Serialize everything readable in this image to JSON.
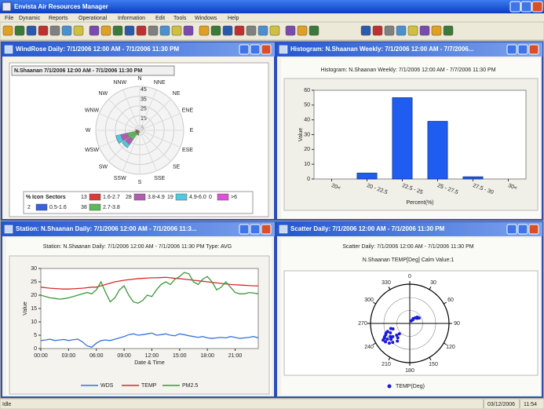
{
  "app": {
    "title": "Envista Air Resources Manager",
    "menu": [
      "File",
      "Dynamic",
      "Reports",
      "Operational",
      "Information",
      "Edit",
      "Tools",
      "Windows",
      "Help"
    ],
    "status": {
      "text": "Idle",
      "date": "03/12/2006",
      "time": "11:54"
    }
  },
  "windows": [
    {
      "title": "WindRose Daily: 7/1/2006 12:00 AM - 7/1/2006 11:30 PM"
    },
    {
      "title": "Histogram: N.Shaanan  Weekly: 7/1/2006 12:00 AM - 7/7/2006..."
    },
    {
      "title": "Station: N.Shaanan  Daily: 7/1/2006 12:00 AM - 7/1/2006 11:3..."
    },
    {
      "title": "Scatter Daily: 7/1/2006 12:00 AM - 7/1/2006 11:30 PM"
    }
  ],
  "chart_data": [
    {
      "type": "windrose",
      "title": "N.Shaanan 7/1/2006 12:00 AM - 7/1/2006 11:30 PM",
      "directions": [
        "N",
        "NNE",
        "NE",
        "ENE",
        "E",
        "ESE",
        "SE",
        "SSE",
        "S",
        "SSW",
        "SW",
        "WSW",
        "W",
        "WNW",
        "NW",
        "NNW"
      ],
      "rlim": [
        0,
        45
      ],
      "rticks": [
        5,
        15,
        25,
        35,
        45
      ],
      "legend_header": [
        "%",
        "Icon",
        "Sectors"
      ],
      "series": [
        {
          "name": "0.5-1.6",
          "color": "#3a62d8",
          "percent": 2,
          "values": [
            0,
            0,
            0,
            0,
            0,
            0,
            0,
            0,
            0,
            0,
            1,
            1,
            0,
            0,
            0,
            0
          ]
        },
        {
          "name": "1.6-2.7",
          "color": "#d83a3a",
          "percent": 13,
          "values": [
            0,
            0,
            0,
            0,
            0,
            0,
            0,
            0,
            0,
            2,
            3,
            3,
            1,
            0,
            0,
            0
          ]
        },
        {
          "name": "2.7-3.8",
          "color": "#5bb85b",
          "percent": 38,
          "values": [
            0,
            0,
            0,
            0,
            0,
            0,
            0,
            0,
            0,
            3,
            8,
            9,
            2,
            0,
            0,
            0
          ]
        },
        {
          "name": "3.8-4.9",
          "color": "#b05cb0",
          "percent": 28,
          "values": [
            0,
            0,
            0,
            0,
            0,
            0,
            0,
            0,
            0,
            0,
            6,
            7,
            1,
            0,
            0,
            0
          ]
        },
        {
          "name": "4.9-6.0",
          "color": "#4fc8e0",
          "percent": 19,
          "values": [
            0,
            0,
            0,
            0,
            0,
            0,
            0,
            0,
            0,
            0,
            4,
            5,
            0,
            0,
            0,
            0
          ]
        },
        {
          "name": ">6",
          "color": "#e04fd8",
          "percent": 0,
          "values": [
            0,
            0,
            0,
            0,
            0,
            0,
            0,
            0,
            0,
            0,
            0,
            0,
            0,
            0,
            0,
            0
          ]
        }
      ]
    },
    {
      "type": "bar",
      "title": "Histogram: N.Shaanan  Weekly: 7/1/2006 12:00 AM - 7/7/2006 11:30 PM",
      "categories": [
        "20<",
        "20 - 22.5",
        "22.5 - 25",
        "25 - 27.5",
        "27.5 - 30",
        "30<"
      ],
      "values": [
        0,
        4,
        55,
        39,
        1.5,
        0
      ],
      "color": "#1f5cf0",
      "ylim": [
        0,
        60
      ],
      "yticks": [
        0,
        10,
        20,
        30,
        40,
        50,
        60
      ],
      "x_label": "Percent(%)",
      "y_label": "Value"
    },
    {
      "type": "line",
      "title": "Station: N.Shaanan  Daily: 7/1/2006 12:00 AM - 7/1/2006 11:30 PM  Type: AVG",
      "x": [
        0,
        0.5,
        1,
        1.5,
        2,
        2.5,
        3,
        3.5,
        4,
        4.5,
        5,
        5.5,
        6,
        6.5,
        7,
        7.5,
        8,
        8.5,
        9,
        9.5,
        10,
        10.5,
        11,
        11.5,
        12,
        12.5,
        13,
        13.5,
        14,
        14.5,
        15,
        15.5,
        16,
        16.5,
        17,
        17.5,
        18,
        18.5,
        19,
        19.5,
        20,
        20.5,
        21,
        21.5,
        22,
        22.5,
        23,
        23.5
      ],
      "xlim": [
        0,
        23.5
      ],
      "xticks": [
        {
          "value": 0,
          "label": "00:00"
        },
        {
          "value": 3,
          "label": "03:00"
        },
        {
          "value": 6,
          "label": "06:00"
        },
        {
          "value": 9,
          "label": "09:00"
        },
        {
          "value": 12,
          "label": "12:00"
        },
        {
          "value": 15,
          "label": "15:00"
        },
        {
          "value": 18,
          "label": "18:00"
        },
        {
          "value": 21,
          "label": "21:00"
        }
      ],
      "ylim": [
        0,
        30
      ],
      "yticks": [
        0,
        5,
        10,
        15,
        20,
        25,
        30
      ],
      "x_label": "Date & Time",
      "y_label": "Value",
      "series": [
        {
          "name": "WDS",
          "color": "#3a73d8",
          "values": [
            3,
            3.2,
            3.5,
            3,
            3.2,
            3.4,
            3,
            3.3,
            3.5,
            2.5,
            1,
            0.5,
            2,
            3,
            3.2,
            3,
            3.5,
            4,
            4.5,
            5.2,
            5.5,
            5,
            5.2,
            5.5,
            5.8,
            5,
            5.2,
            5.5,
            5,
            4.8,
            5.5,
            5.2,
            4.8,
            4.5,
            4.2,
            4.5,
            4,
            3.8,
            4,
            4.2,
            4,
            4.5,
            4.2,
            3.8,
            4,
            4.2,
            4.5,
            4
          ]
        },
        {
          "name": "TEMP",
          "color": "#d82a2a",
          "values": [
            23,
            22.8,
            22.6,
            22.5,
            22.4,
            22.3,
            22.3,
            22.4,
            22.5,
            22.6,
            22.8,
            23,
            23,
            23.5,
            24,
            24.5,
            25,
            25.3,
            25.6,
            25.8,
            26,
            26.2,
            26.3,
            26.4,
            26.5,
            26.5,
            26.6,
            26.7,
            26.5,
            26.3,
            26.2,
            26,
            25.8,
            25.6,
            25.4,
            25.2,
            25,
            24.8,
            24.6,
            24.4,
            24.2,
            24,
            23.9,
            23.8,
            23.7,
            23.6,
            23.5,
            23.5
          ]
        },
        {
          "name": "PM2.5",
          "color": "#3a9a3a",
          "values": [
            20,
            19.5,
            19,
            18.8,
            18.5,
            18.7,
            19,
            19.5,
            20,
            20.5,
            21,
            20.5,
            22,
            25,
            21,
            17.5,
            19,
            22,
            23.5,
            20,
            17.5,
            17,
            18,
            20,
            19.5,
            22,
            24,
            25,
            24,
            26,
            27,
            28.5,
            28,
            25,
            24,
            26,
            27,
            25,
            22,
            23,
            25,
            23,
            21,
            20.5,
            20.5,
            21,
            20.8,
            20.5
          ]
        }
      ]
    },
    {
      "type": "polar_scatter",
      "title": "Scatter Daily: 7/1/2006 12:00 AM - 7/1/2006 11:30 PM",
      "subtitle": "N.Shaanan TEMP[Deg]   Calm Value:1",
      "angle_ticks": [
        0,
        30,
        60,
        90,
        120,
        150,
        180,
        210,
        240,
        270,
        300,
        330
      ],
      "xlim": [
        0,
        360
      ],
      "rlim": [
        0,
        4
      ],
      "series": [
        {
          "name": "TEMP(Deg)",
          "color": "#1a1adb",
          "x": [
            230,
            235,
            240,
            245,
            250,
            255,
            238,
            242,
            248,
            232,
            228,
            236,
            244,
            252,
            225,
            220,
            215,
            222,
            226,
            233,
            40,
            45,
            50,
            35,
            30,
            60,
            55
          ],
          "values": [
            2.5,
            2.8,
            3.0,
            2.7,
            2.4,
            2.0,
            3.2,
            2.9,
            2.6,
            2.2,
            1.8,
            2.4,
            2.2,
            1.8,
            1.5,
            1.9,
            2.2,
            2.6,
            2.9,
            3.1,
            0.5,
            0.8,
            1.0,
            0.6,
            0.3,
            1.1,
            0.9
          ]
        }
      ]
    }
  ]
}
